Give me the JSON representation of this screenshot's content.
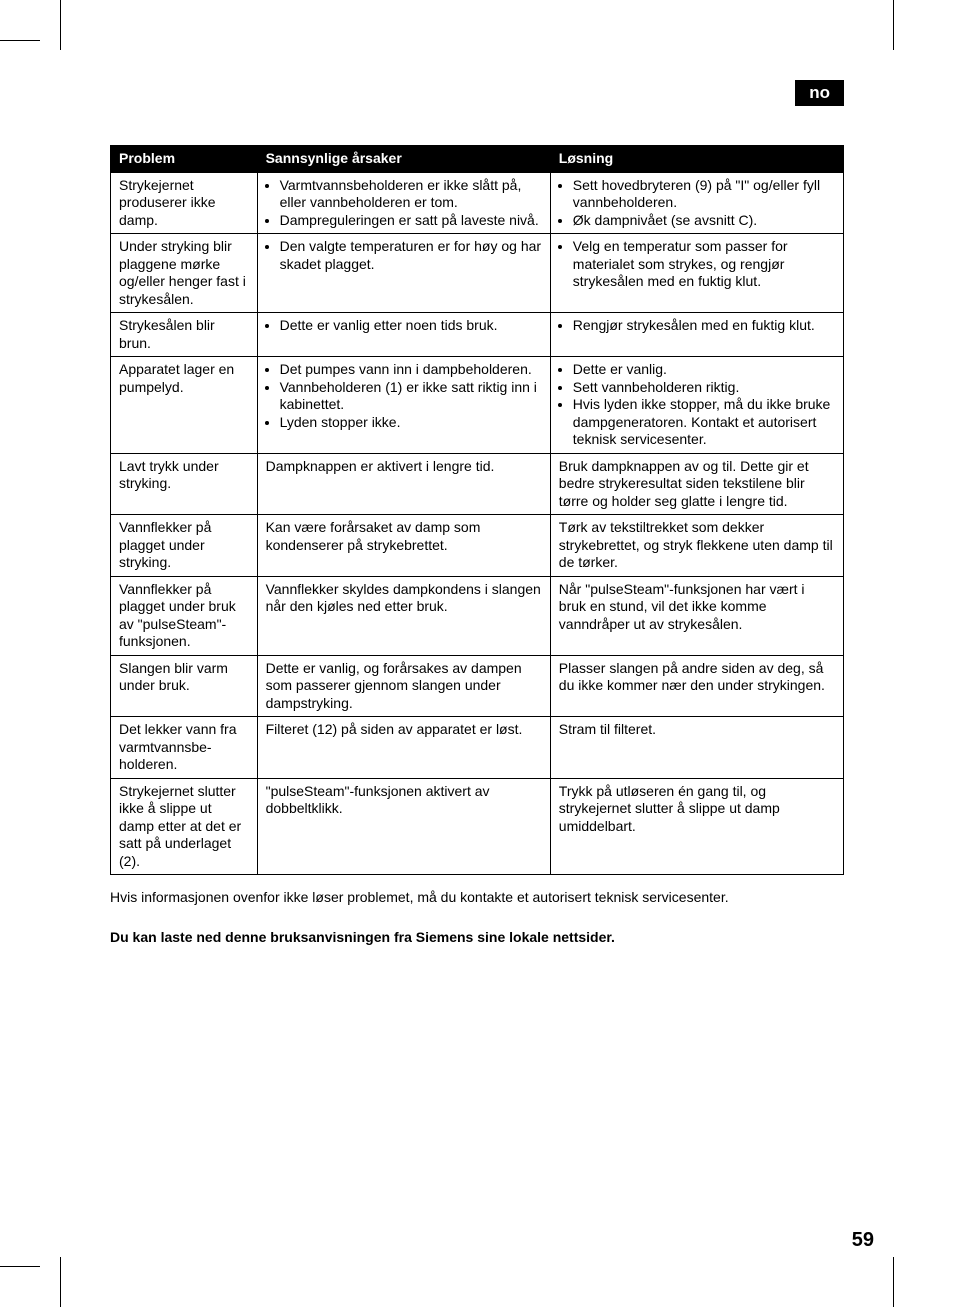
{
  "lang_tag": "no",
  "page_number": "59",
  "table": {
    "columns": [
      "Problem",
      "Sannsynlige årsaker",
      "Løsning"
    ],
    "col_widths_pct": [
      20,
      40,
      40
    ],
    "header_bg": "#000000",
    "header_fg": "#ffffff",
    "border_color": "#000000",
    "font_size_pt": 10.5,
    "rows": [
      {
        "problem": "Strykejernet produserer ikke damp.",
        "cause_bullets": [
          "Varmtvannsbeholderen er ikke slått på, eller vannbeholderen er tom.",
          "Dampreguleringen er satt på laveste nivå."
        ],
        "solution_bullets": [
          "Sett hovedbryteren (9) på \"I\" og/eller fyll vannbeholderen.",
          "Øk dampnivået (se avsnitt C)."
        ]
      },
      {
        "problem": "Under stryking blir plaggene mørke og/eller henger fast i strykesålen.",
        "cause_bullets": [
          "Den valgte temperaturen er for høy og har skadet plagget."
        ],
        "solution_bullets": [
          "Velg en temperatur som passer for materialet som strykes, og rengjør strykesålen med en fuktig klut."
        ]
      },
      {
        "problem": "Strykesålen blir brun.",
        "cause_bullets": [
          "Dette er vanlig etter noen tids bruk."
        ],
        "solution_bullets": [
          "Rengjør strykesålen med en fuktig klut."
        ]
      },
      {
        "problem": "Apparatet lager en pumpelyd.",
        "cause_bullets": [
          "Det pumpes vann inn i dampbeholderen.",
          "Vannbeholderen (1) er ikke satt riktig inn i kabinettet.",
          "Lyden stopper ikke."
        ],
        "solution_bullets": [
          "Dette er vanlig.",
          "Sett vannbeholderen riktig.",
          "Hvis lyden ikke stopper, må du ikke bruke dampgeneratoren. Kontakt et autorisert teknisk servicesenter."
        ]
      },
      {
        "problem": "Lavt trykk under stryking.",
        "cause_plain": "Dampknappen er aktivert i lengre tid.",
        "solution_plain": "Bruk dampknappen av og til. Dette gir et bedre strykeresultat siden tekstilene blir tørre og holder seg glatte i lengre tid."
      },
      {
        "problem": "Vannflekker på plagget under stryking.",
        "cause_plain": "Kan være forårsaket av damp som kondenserer på strykebrettet.",
        "solution_plain": "Tørk av tekstiltrekket som dekker strykebrettet, og stryk flekkene uten damp til de tørker."
      },
      {
        "problem": "Vannflekker på plagget under bruk av \"pulseSteam\"-funksjonen.",
        "cause_plain": "Vannflekker skyldes dampkondens i slangen når den kjøles ned etter bruk.",
        "solution_plain": "Når \"pulseSteam\"-funksjonen har vært i bruk en stund, vil det ikke komme vanndråper ut av strykesålen."
      },
      {
        "problem": "Slangen blir varm under bruk.",
        "cause_plain": "Dette er vanlig, og forårsakes av dampen som passerer gjennom slangen under dampstryking.",
        "solution_plain": "Plasser slangen på andre siden av deg, så du ikke kommer nær den under strykingen."
      },
      {
        "problem": "Det lekker vann fra varmtvannsbe-holderen.",
        "cause_plain": "Filteret (12) på siden av apparatet er løst.",
        "solution_plain": "Stram til filteret."
      },
      {
        "problem": "Strykejernet slutter ikke å slippe ut damp etter at det er satt på underlaget (2).",
        "cause_plain": "\"pulseSteam\"-funksjonen aktivert av dobbeltklikk.",
        "solution_plain": "Trykk på utløseren én gang til, og strykejernet slutter å slippe ut damp umiddelbart."
      }
    ]
  },
  "footer_note": "Hvis informasjonen ovenfor ikke løser problemet, må du kontakte et autorisert teknisk servicesenter.",
  "footer_bold": "Du kan laste ned denne bruksanvisningen fra Siemens sine lokale nettsider.",
  "colors": {
    "bg": "#ffffff",
    "text": "#000000"
  }
}
